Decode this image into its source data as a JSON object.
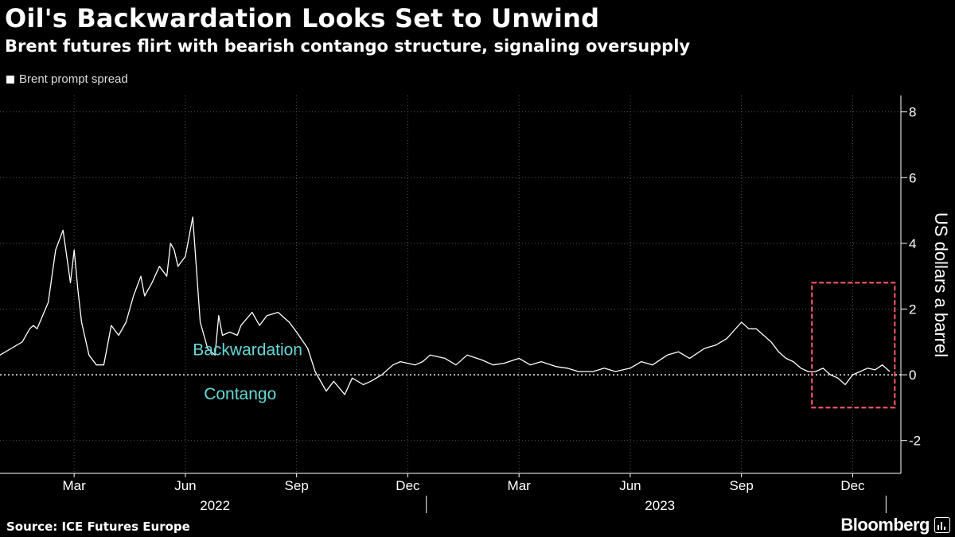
{
  "header": {
    "title": "Oil's Backwardation Looks Set to Unwind",
    "subtitle": "Brent futures flirt with bearish contango structure, signaling oversupply"
  },
  "legend": {
    "label": "Brent prompt spread"
  },
  "footer": {
    "source": "Source: ICE Futures Europe",
    "brand": "Bloomberg"
  },
  "colors": {
    "background": "#000000",
    "line": "#ffffff",
    "annotation": "#66d6d6",
    "highlight_box": "#ff5a6e",
    "grid": "#555555"
  },
  "chart_data": {
    "type": "line",
    "title": "Oil's Backwardation Looks Set to Unwind",
    "subtitle": "Brent futures flirt with bearish contango structure, signaling oversupply",
    "ylabel": "US dollars a barrel",
    "ylim": [
      -3,
      8.5
    ],
    "yticks": [
      -2,
      0,
      2,
      4,
      6,
      8
    ],
    "xlim": [
      0,
      24.3
    ],
    "xticks": [
      {
        "x": 2.0,
        "label": "Mar"
      },
      {
        "x": 5.0,
        "label": "Jun"
      },
      {
        "x": 8.0,
        "label": "Sep"
      },
      {
        "x": 11.0,
        "label": "Dec"
      },
      {
        "x": 14.0,
        "label": "Mar"
      },
      {
        "x": 17.0,
        "label": "Jun"
      },
      {
        "x": 20.0,
        "label": "Sep"
      },
      {
        "x": 23.0,
        "label": "Dec"
      }
    ],
    "years": [
      {
        "x": 5.8,
        "label": "2022"
      },
      {
        "x": 17.8,
        "label": "2023"
      }
    ],
    "annotations": [
      {
        "text": "Backwardation",
        "x": 5.2,
        "y": 0.6
      },
      {
        "text": "Contango",
        "x": 5.5,
        "y": -0.75
      }
    ],
    "highlight": {
      "x0": 21.9,
      "x1": 24.35,
      "y0": -1.0,
      "y1": 2.8
    },
    "series": [
      {
        "name": "Brent prompt spread",
        "x": [
          0.0,
          0.3,
          0.6,
          0.8,
          0.9,
          1.0,
          1.3,
          1.5,
          1.7,
          1.8,
          1.9,
          2.0,
          2.1,
          2.2,
          2.4,
          2.6,
          2.8,
          3.0,
          3.2,
          3.4,
          3.6,
          3.8,
          3.9,
          4.1,
          4.3,
          4.5,
          4.6,
          4.7,
          4.8,
          5.0,
          5.1,
          5.2,
          5.4,
          5.6,
          5.8,
          5.9,
          6.0,
          6.2,
          6.4,
          6.5,
          6.8,
          7.0,
          7.2,
          7.5,
          7.8,
          8.0,
          8.3,
          8.5,
          8.8,
          9.0,
          9.3,
          9.5,
          9.8,
          10.0,
          10.3,
          10.6,
          10.8,
          11.0,
          11.2,
          11.4,
          11.6,
          12.0,
          12.3,
          12.6,
          13.0,
          13.3,
          13.6,
          14.0,
          14.3,
          14.6,
          15.0,
          15.3,
          15.6,
          16.0,
          16.3,
          16.6,
          17.0,
          17.3,
          17.6,
          18.0,
          18.3,
          18.6,
          19.0,
          19.3,
          19.6,
          20.0,
          20.2,
          20.4,
          20.6,
          20.8,
          21.0,
          21.2,
          21.4,
          21.6,
          21.8,
          22.0,
          22.2,
          22.4,
          22.6,
          22.8,
          23.0,
          23.2,
          23.4,
          23.6,
          23.8,
          24.0
        ],
        "y": [
          0.6,
          0.8,
          1.0,
          1.4,
          1.5,
          1.4,
          2.2,
          3.8,
          4.4,
          3.6,
          2.8,
          3.8,
          2.6,
          1.6,
          0.6,
          0.3,
          0.3,
          1.5,
          1.2,
          1.6,
          2.4,
          3.0,
          2.4,
          2.8,
          3.3,
          3.0,
          4.0,
          3.8,
          3.3,
          3.6,
          4.2,
          4.8,
          1.6,
          0.8,
          0.6,
          1.8,
          1.2,
          1.3,
          1.2,
          1.5,
          1.9,
          1.5,
          1.8,
          1.9,
          1.6,
          1.3,
          0.8,
          0.1,
          -0.5,
          -0.2,
          -0.6,
          -0.1,
          -0.3,
          -0.2,
          0.0,
          0.3,
          0.4,
          0.35,
          0.3,
          0.4,
          0.6,
          0.5,
          0.3,
          0.6,
          0.45,
          0.3,
          0.35,
          0.5,
          0.3,
          0.4,
          0.25,
          0.2,
          0.1,
          0.1,
          0.2,
          0.1,
          0.2,
          0.4,
          0.3,
          0.6,
          0.7,
          0.5,
          0.8,
          0.9,
          1.1,
          1.6,
          1.4,
          1.4,
          1.2,
          1.0,
          0.7,
          0.5,
          0.4,
          0.2,
          0.1,
          0.1,
          0.2,
          0.0,
          -0.1,
          -0.3,
          0.0,
          0.1,
          0.2,
          0.15,
          0.3,
          0.1
        ]
      }
    ]
  }
}
